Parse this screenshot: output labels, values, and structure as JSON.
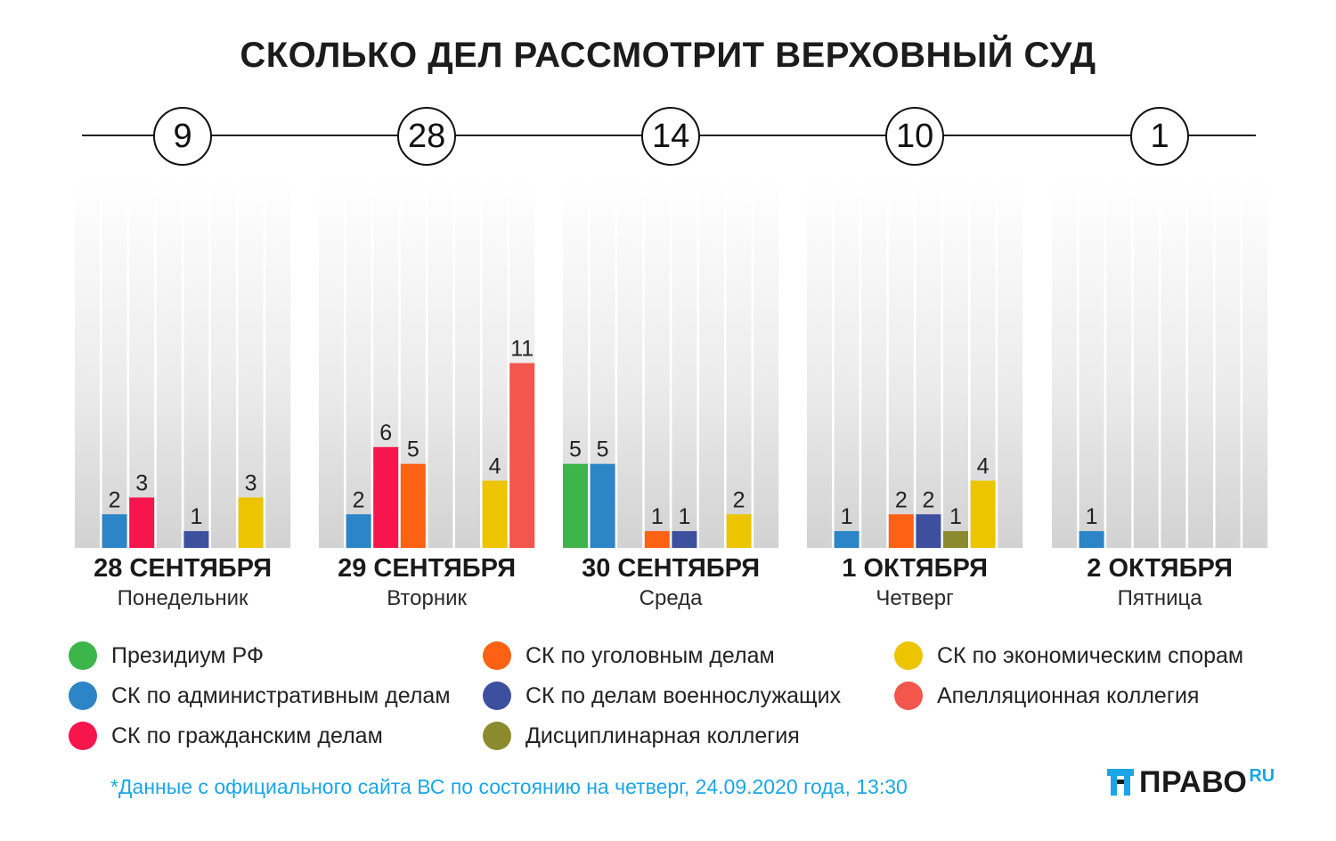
{
  "title": "СКОЛЬКО ДЕЛ РАССМОТРИТ ВЕРХОВНЫЙ СУД",
  "chart_data": {
    "type": "bar",
    "categories": [
      {
        "date": "28 СЕНТЯБРЯ",
        "weekday": "Понедельник",
        "total": "9"
      },
      {
        "date": "29 СЕНТЯБРЯ",
        "weekday": "Вторник",
        "total": "28"
      },
      {
        "date": "30 СЕНТЯБРЯ",
        "weekday": "Среда",
        "total": "14"
      },
      {
        "date": "1 ОКТЯБРЯ",
        "weekday": "Четверг",
        "total": "10"
      },
      {
        "date": "2 ОКТЯБРЯ",
        "weekday": "Пятница",
        "total": "1"
      }
    ],
    "series": [
      {
        "name": "Президиум РФ",
        "color": "#3cb54a",
        "values": [
          0,
          0,
          5,
          0,
          0
        ]
      },
      {
        "name": "СК по административным делам",
        "color": "#2b85c7",
        "values": [
          2,
          2,
          5,
          1,
          1
        ]
      },
      {
        "name": "СК по гражданским делам",
        "color": "#f7154e",
        "values": [
          3,
          6,
          0,
          0,
          0
        ]
      },
      {
        "name": "СК по уголовным делам",
        "color": "#fd6113",
        "values": [
          0,
          5,
          1,
          2,
          0
        ]
      },
      {
        "name": "СК по делам военнослужащих",
        "color": "#3d509e",
        "values": [
          1,
          0,
          1,
          2,
          0
        ]
      },
      {
        "name": "Дисциплинарная коллегия",
        "color": "#8b8a2e",
        "values": [
          0,
          0,
          0,
          1,
          0
        ]
      },
      {
        "name": "СК по экономическим спорам",
        "color": "#ecc500",
        "values": [
          3,
          4,
          2,
          4,
          0
        ]
      },
      {
        "name": "Апелляционная коллегия",
        "color": "#f2564c",
        "values": [
          0,
          11,
          0,
          0,
          0
        ]
      }
    ],
    "ylim": [
      0,
      22
    ],
    "grid": false,
    "legend": "bottom"
  },
  "footnote": "*Данные с официального сайта ВС по состоянию на четверг, 24.09.2020 года, 13:30",
  "logo": {
    "text": "ПРАВО",
    "suffix": "RU",
    "icon": "pravo-logo-icon"
  }
}
